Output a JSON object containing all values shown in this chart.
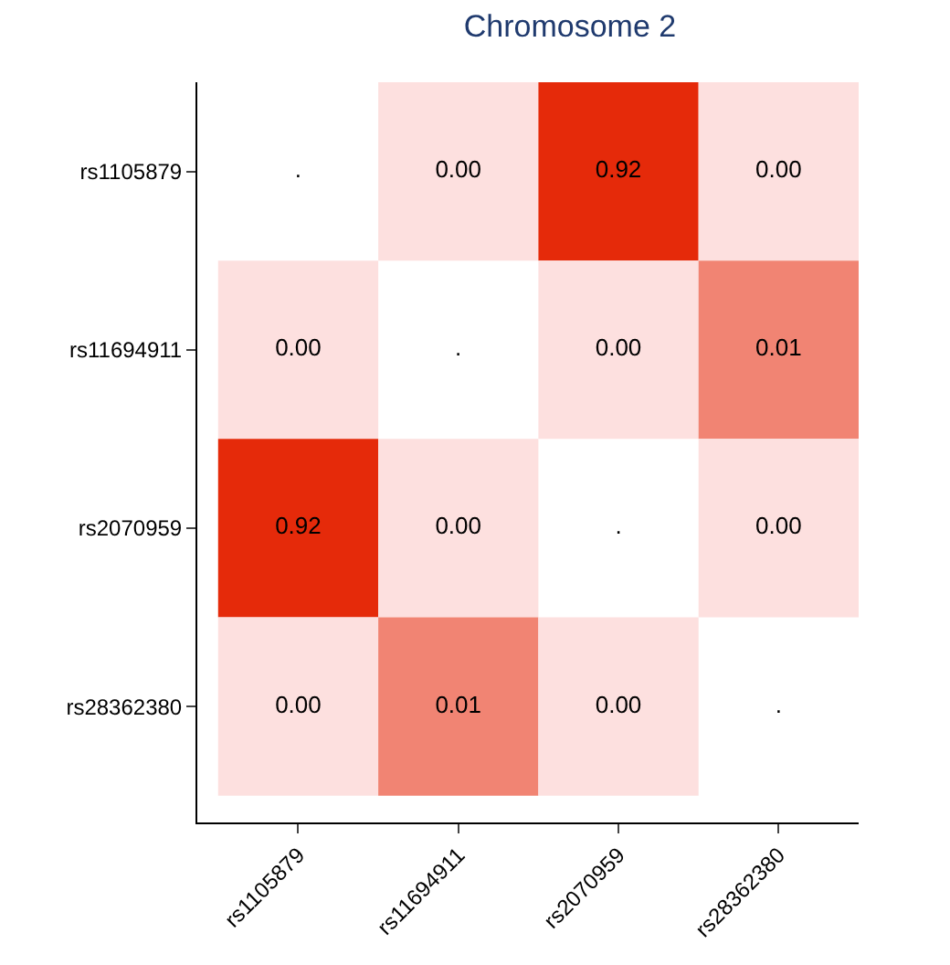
{
  "chart_data": {
    "type": "heatmap",
    "title": "Chromosome 2",
    "categories": [
      "rs1105879",
      "rs11694911",
      "rs2070959",
      "rs28362380"
    ],
    "y_categories": [
      "rs1105879",
      "rs11694911",
      "rs2070959",
      "rs28362380"
    ],
    "cells": [
      [
        null,
        0.0,
        0.92,
        0.0
      ],
      [
        0.0,
        null,
        0.0,
        0.01
      ],
      [
        0.92,
        0.0,
        null,
        0.0
      ],
      [
        0.0,
        0.01,
        0.0,
        null
      ]
    ],
    "cell_labels": [
      [
        ".",
        "0.00",
        "0.92",
        "0.00"
      ],
      [
        "0.00",
        ".",
        "0.00",
        "0.01"
      ],
      [
        "0.92",
        "0.00",
        ".",
        "0.00"
      ],
      [
        "0.00",
        "0.01",
        "0.00",
        "."
      ]
    ],
    "colors": [
      "#fde0df",
      "#e52a0a"
    ]
  }
}
